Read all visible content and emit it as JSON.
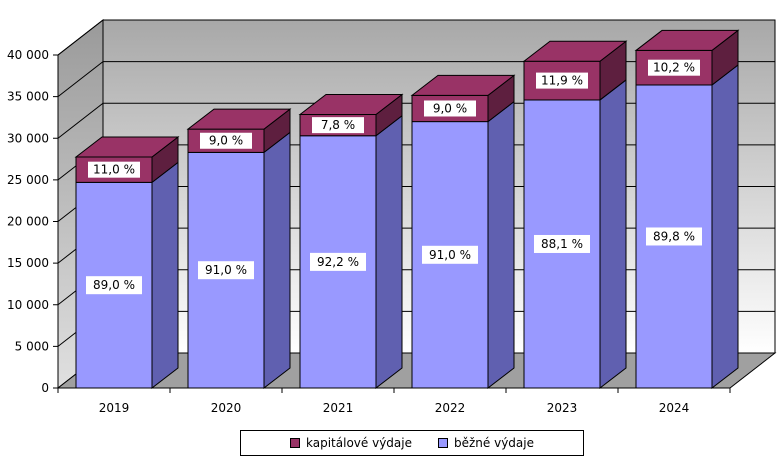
{
  "chart_data": {
    "type": "bar",
    "stacked": true,
    "three_d": true,
    "categories": [
      "2019",
      "2020",
      "2021",
      "2022",
      "2023",
      "2024"
    ],
    "series": [
      {
        "name": "běžné výdaje",
        "values": [
          24700,
          28300,
          30300,
          32000,
          34600,
          36400
        ],
        "labels": [
          "89,0 %",
          "91,0 %",
          "92,2 %",
          "91,0 %",
          "88,1 %",
          "89,8 %"
        ],
        "color": "#9999FF",
        "side_color": "#6060B0"
      },
      {
        "name": "kapitálové výdaje",
        "values": [
          3050,
          2800,
          2550,
          3150,
          4650,
          4150
        ],
        "labels": [
          "11,0 %",
          "9,0 %",
          "7,8 %",
          "9,0 %",
          "11,9 %",
          "10,2 %"
        ],
        "color": "#993366",
        "side_color": "#5E1F3F"
      }
    ],
    "y_ticks": [
      "0",
      "5 000",
      "10 000",
      "15 000",
      "20 000",
      "25 000",
      "30 000",
      "35 000",
      "40 000"
    ],
    "ylim": [
      0,
      40000
    ],
    "grid": true,
    "legend_position": "bottom",
    "xlabel": "",
    "ylabel": ""
  }
}
